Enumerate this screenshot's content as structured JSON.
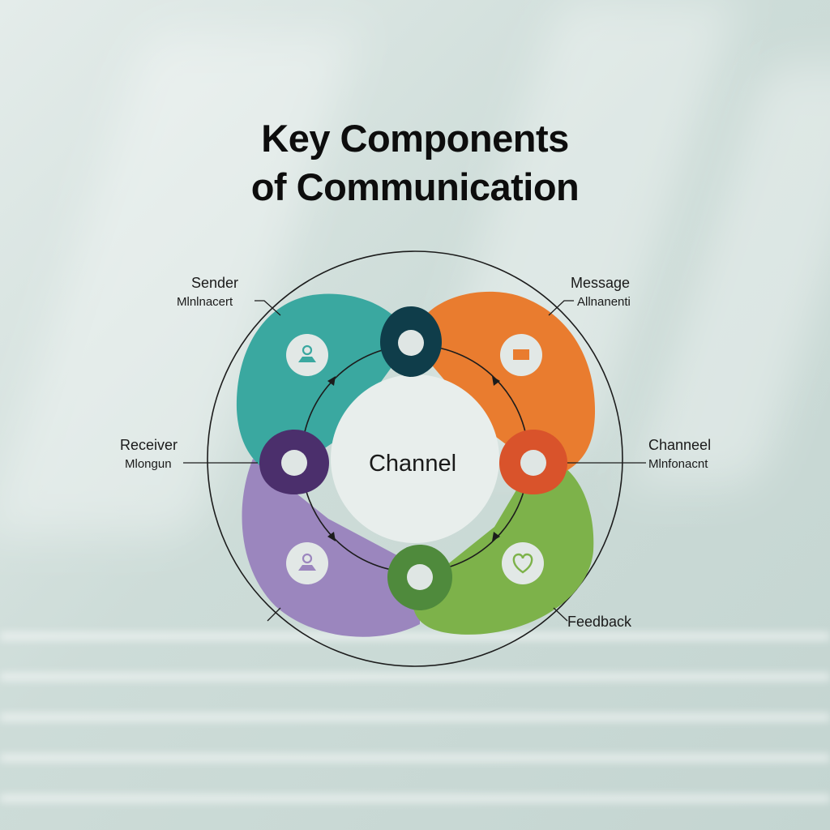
{
  "title": {
    "line1": "Key Components",
    "line2": "of Communication"
  },
  "center": {
    "label": "Channel"
  },
  "callouts": {
    "sender": {
      "label": "Sender",
      "sub": "Mlnlnacert"
    },
    "message": {
      "label": "Message",
      "sub": "Allnanenti"
    },
    "receiver": {
      "label": "Receiver",
      "sub": "Mlongun"
    },
    "channel": {
      "label": "Channeel",
      "sub": "Mlnfonacnt"
    },
    "feedback": {
      "label": "Feedback"
    }
  },
  "segments": [
    {
      "id": "sender",
      "color": "#3aa8a0",
      "icon": "person-icon"
    },
    {
      "id": "message",
      "color": "#e97c2f",
      "icon": "message-icon"
    },
    {
      "id": "receiver",
      "color": "#9b86be",
      "icon": "person-icon"
    },
    {
      "id": "feedback",
      "color": "#7db24a",
      "icon": "heart-icon"
    }
  ],
  "nodes": [
    {
      "id": "top",
      "color": "#0f3d4a"
    },
    {
      "id": "left",
      "color": "#4b2f6c"
    },
    {
      "id": "right",
      "color": "#d9532b"
    },
    {
      "id": "bottom",
      "color": "#4f8a3c"
    }
  ]
}
